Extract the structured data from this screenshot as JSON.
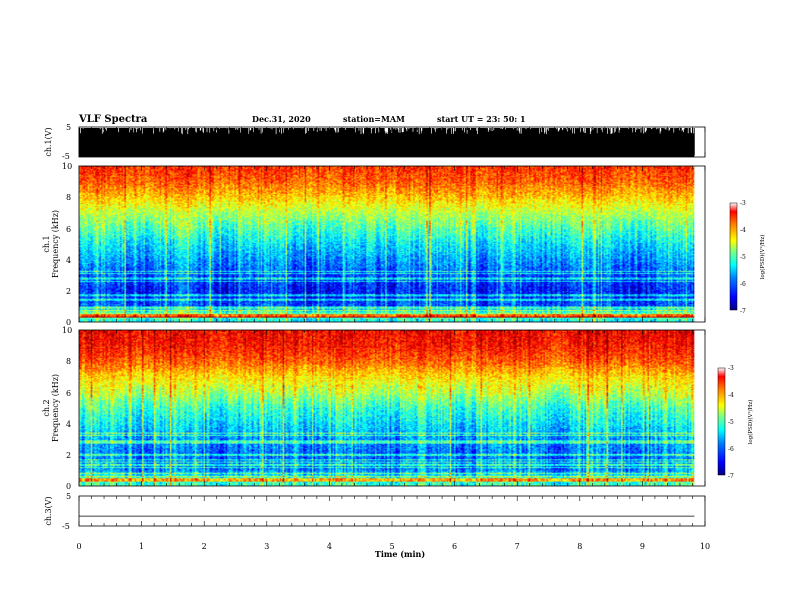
{
  "header": {
    "title": "VLF Spectra",
    "date": "Dec.31, 2020",
    "station": "station=MAM",
    "start_ut": "start  UT  =   23: 50: 1"
  },
  "chart_data": [
    {
      "type": "line",
      "panel": "ch.1 waveform",
      "ylabel": "ch.1(V)",
      "ylim": [
        -5,
        5
      ],
      "yticks": [
        "5",
        "-5"
      ],
      "description_values": {
        "dense_waveform": true,
        "x_range_min": [
          0,
          9.83
        ]
      }
    },
    {
      "type": "heatmap",
      "panel": "ch.1 spectrogram",
      "ylabel_line1": "ch.1",
      "ylabel_line2": "Frequency  (kHz)",
      "ylim": [
        0,
        10
      ],
      "yticks": [
        "0",
        "2",
        "4",
        "6",
        "8",
        "10"
      ],
      "x_range_min": [
        0,
        9.83
      ],
      "profile_log_psd": [
        {
          "f": 0.0,
          "v": -5.5
        },
        {
          "f": 0.5,
          "v": -5.0
        },
        {
          "f": 1.0,
          "v": -6.2
        },
        {
          "f": 2.0,
          "v": -6.4
        },
        {
          "f": 3.0,
          "v": -6.2
        },
        {
          "f": 4.0,
          "v": -5.9
        },
        {
          "f": 5.0,
          "v": -5.6
        },
        {
          "f": 6.0,
          "v": -5.2
        },
        {
          "f": 7.0,
          "v": -4.8
        },
        {
          "f": 8.0,
          "v": -4.3
        },
        {
          "f": 9.0,
          "v": -3.9
        },
        {
          "f": 10.0,
          "v": -3.7
        }
      ],
      "colorbar": {
        "label": "log(PSD)(V²/Hz)",
        "range": [
          -7,
          -3
        ],
        "ticks": [
          "-3",
          "-4",
          "-5",
          "-6",
          "-7"
        ]
      }
    },
    {
      "type": "heatmap",
      "panel": "ch.2 spectrogram",
      "ylabel_line1": "ch.2",
      "ylabel_line2": "Frequency  (kHz)",
      "ylim": [
        0,
        10
      ],
      "yticks": [
        "0",
        "2",
        "4",
        "6",
        "8",
        "10"
      ],
      "x_range_min": [
        0,
        9.83
      ],
      "profile_log_psd": [
        {
          "f": 0.0,
          "v": -5.3
        },
        {
          "f": 0.5,
          "v": -5.4
        },
        {
          "f": 1.0,
          "v": -6.0
        },
        {
          "f": 2.0,
          "v": -6.1
        },
        {
          "f": 3.0,
          "v": -5.9
        },
        {
          "f": 4.0,
          "v": -5.6
        },
        {
          "f": 5.0,
          "v": -5.3
        },
        {
          "f": 6.0,
          "v": -4.8
        },
        {
          "f": 7.0,
          "v": -4.4
        },
        {
          "f": 8.0,
          "v": -3.9
        },
        {
          "f": 9.0,
          "v": -3.6
        },
        {
          "f": 10.0,
          "v": -3.5
        }
      ],
      "colorbar": {
        "label": "log(PSD)(V²/Hz)",
        "range": [
          -7,
          -3
        ],
        "ticks": [
          "-3",
          "-4",
          "-5",
          "-6",
          "-7"
        ]
      }
    },
    {
      "type": "line",
      "panel": "ch.3 waveform",
      "ylabel": "ch.3(V)",
      "ylim": [
        -5,
        5
      ],
      "yticks": [
        "5",
        "-5"
      ],
      "values": [
        {
          "x": 0,
          "y": -1.8
        },
        {
          "x": 9.83,
          "y": -1.8
        }
      ]
    }
  ],
  "xaxis": {
    "label": "Time  (min)",
    "ticks": [
      "0",
      "1",
      "2",
      "3",
      "4",
      "5",
      "6",
      "7",
      "8",
      "9",
      "10"
    ],
    "range": [
      0,
      10
    ]
  },
  "colors": {
    "jet": [
      "#000080",
      "#0000ff",
      "#0080ff",
      "#00ffff",
      "#80ff80",
      "#ffff00",
      "#ff8000",
      "#ff0000",
      "#800000"
    ]
  }
}
